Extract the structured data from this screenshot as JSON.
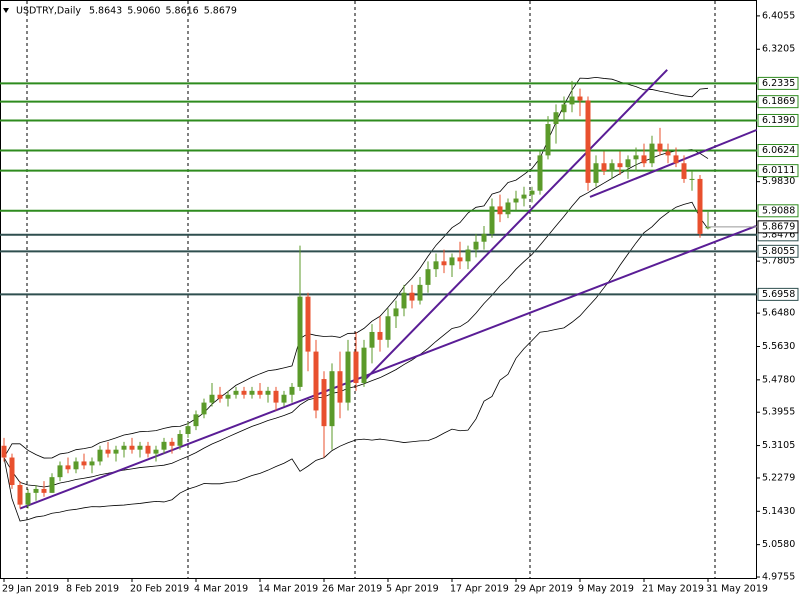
{
  "chart_data": {
    "type": "candlestick",
    "title": "USDTRY,Daily",
    "header_values": [
      {
        "value": 5.8643,
        "label": "5.8643"
      },
      {
        "value": 5.906,
        "label": "5.9060"
      },
      {
        "value": 5.8616,
        "label": "5.8616"
      },
      {
        "value": 5.8679,
        "label": "5.8679"
      }
    ],
    "categories": [
      "29 Jan 2019",
      null,
      null,
      null,
      null,
      null,
      null,
      null,
      "8 Feb 2019",
      null,
      null,
      null,
      null,
      null,
      null,
      null,
      "20 Feb 2019",
      null,
      null,
      null,
      null,
      null,
      null,
      null,
      "4 Mar 2019",
      null,
      null,
      null,
      null,
      null,
      null,
      null,
      "14 Mar 2019",
      null,
      null,
      null,
      null,
      null,
      null,
      null,
      "26 Mar 2019",
      null,
      null,
      null,
      null,
      null,
      null,
      null,
      "5 Apr 2019",
      null,
      null,
      null,
      null,
      null,
      null,
      null,
      "17 Apr 2019",
      null,
      null,
      null,
      null,
      null,
      null,
      null,
      "29 Apr 2019",
      null,
      null,
      null,
      null,
      null,
      null,
      null,
      "9 May 2019",
      null,
      null,
      null,
      null,
      null,
      null,
      null,
      "21 May 2019",
      null,
      null,
      null,
      null,
      null,
      null,
      null,
      "31 May 2019"
    ],
    "open": [
      5.31,
      5.28,
      5.21,
      5.16,
      5.19,
      5.2,
      5.19,
      5.23,
      5.26,
      5.25,
      5.27,
      5.26,
      5.27,
      5.3,
      5.29,
      5.3,
      5.31,
      5.3,
      5.31,
      5.29,
      5.3,
      5.32,
      5.31,
      5.34,
      5.36,
      5.39,
      5.42,
      5.44,
      5.43,
      5.44,
      5.45,
      5.44,
      5.45,
      5.44,
      5.45,
      5.42,
      5.44,
      5.46,
      5.69,
      5.55,
      5.48,
      5.36,
      5.5,
      5.42,
      5.55,
      5.47,
      5.56,
      5.6,
      5.58,
      5.64,
      5.66,
      5.7,
      5.68,
      5.72,
      5.76,
      5.78,
      5.77,
      5.79,
      5.78,
      5.81,
      5.83,
      5.85,
      5.92,
      5.9,
      5.93,
      5.94,
      5.95,
      5.96,
      6.05,
      6.13,
      6.16,
      6.18,
      6.2,
      6.19,
      5.98,
      6.03,
      6.01,
      6.03,
      6.02,
      6.04,
      6.05,
      6.03,
      6.08,
      6.06,
      6.05,
      6.03,
      5.99,
      5.99,
      5.8643
    ],
    "high": [
      5.33,
      5.29,
      5.22,
      5.2,
      5.21,
      5.22,
      5.24,
      5.27,
      5.28,
      5.28,
      5.29,
      5.28,
      5.31,
      5.32,
      5.31,
      5.32,
      5.33,
      5.32,
      5.32,
      5.31,
      5.33,
      5.33,
      5.35,
      5.37,
      5.4,
      5.43,
      5.47,
      5.46,
      5.45,
      5.46,
      5.46,
      5.46,
      5.47,
      5.46,
      5.46,
      5.45,
      5.47,
      5.82,
      5.7,
      5.58,
      5.5,
      5.52,
      5.55,
      5.58,
      5.6,
      5.58,
      5.62,
      5.64,
      5.66,
      5.68,
      5.72,
      5.72,
      5.74,
      5.78,
      5.8,
      5.81,
      5.8,
      5.83,
      5.82,
      5.85,
      5.87,
      5.94,
      5.95,
      5.94,
      5.96,
      5.97,
      5.97,
      6.06,
      6.15,
      6.18,
      6.2,
      6.24,
      6.22,
      6.2,
      6.05,
      6.06,
      6.04,
      6.06,
      6.05,
      6.07,
      6.08,
      6.1,
      6.12,
      6.08,
      6.07,
      6.05,
      6.01,
      6.0,
      5.906
    ],
    "low": [
      5.27,
      5.2,
      5.15,
      5.15,
      5.17,
      5.18,
      5.19,
      5.22,
      5.24,
      5.24,
      5.25,
      5.24,
      5.26,
      5.28,
      5.27,
      5.28,
      5.29,
      5.28,
      5.28,
      5.27,
      5.29,
      5.29,
      5.3,
      5.33,
      5.35,
      5.38,
      5.41,
      5.42,
      5.41,
      5.43,
      5.43,
      5.43,
      5.43,
      5.42,
      5.4,
      5.41,
      5.42,
      5.45,
      5.5,
      5.38,
      5.28,
      5.3,
      5.38,
      5.4,
      5.45,
      5.46,
      5.52,
      5.55,
      5.56,
      5.61,
      5.64,
      5.66,
      5.67,
      5.7,
      5.74,
      5.75,
      5.74,
      5.76,
      5.76,
      5.79,
      5.81,
      5.84,
      5.88,
      5.89,
      5.91,
      5.92,
      5.93,
      5.95,
      6.04,
      6.08,
      6.14,
      6.16,
      6.15,
      5.96,
      5.97,
      6.0,
      5.99,
      6.0,
      5.99,
      6.01,
      6.02,
      6.02,
      6.05,
      6.03,
      6.02,
      5.98,
      5.96,
      5.84,
      5.8616
    ],
    "close": [
      5.28,
      5.21,
      5.16,
      5.19,
      5.2,
      5.19,
      5.23,
      5.26,
      5.25,
      5.27,
      5.26,
      5.27,
      5.3,
      5.29,
      5.3,
      5.31,
      5.3,
      5.31,
      5.29,
      5.3,
      5.32,
      5.31,
      5.34,
      5.36,
      5.39,
      5.42,
      5.44,
      5.43,
      5.44,
      5.45,
      5.44,
      5.45,
      5.44,
      5.45,
      5.42,
      5.44,
      5.46,
      5.69,
      5.55,
      5.4,
      5.36,
      5.5,
      5.42,
      5.55,
      5.47,
      5.56,
      5.6,
      5.58,
      5.64,
      5.66,
      5.7,
      5.68,
      5.72,
      5.76,
      5.78,
      5.77,
      5.79,
      5.78,
      5.81,
      5.83,
      5.85,
      5.92,
      5.9,
      5.93,
      5.94,
      5.95,
      5.96,
      6.05,
      6.13,
      6.16,
      6.18,
      6.2,
      6.19,
      5.98,
      6.03,
      6.01,
      6.03,
      6.02,
      6.04,
      6.05,
      6.03,
      6.08,
      6.06,
      6.05,
      6.03,
      5.99,
      5.99,
      5.85,
      5.8679
    ],
    "up_color": "#5b9a2a",
    "down_color": "#e8502e",
    "ylim": [
      4.973,
      6.446
    ],
    "yticks": [
      {
        "value": 6.4055,
        "label": "6.4055"
      },
      {
        "value": 6.3205,
        "label": "6.3205"
      },
      {
        "value": 5.983,
        "label": "5.9830"
      },
      {
        "value": 5.7805,
        "label": "5.7805"
      },
      {
        "value": 5.648,
        "label": "5.6480"
      },
      {
        "value": 5.563,
        "label": "5.5630"
      },
      {
        "value": 5.478,
        "label": "5.4780"
      },
      {
        "value": 5.3955,
        "label": "5.3955"
      },
      {
        "value": 5.3105,
        "label": "5.3105"
      },
      {
        "value": 5.2279,
        "label": "5.2279"
      },
      {
        "value": 5.143,
        "label": "5.1430"
      },
      {
        "value": 5.058,
        "label": "5.0580"
      },
      {
        "value": 4.9755,
        "label": "4.9755"
      }
    ],
    "levels": [
      {
        "value": 6.2335,
        "label": "6.2335",
        "color": "#2e8b1e"
      },
      {
        "value": 6.1869,
        "label": "6.1869",
        "color": "#2e8b1e"
      },
      {
        "value": 6.139,
        "label": "6.1390",
        "color": "#2e8b1e"
      },
      {
        "value": 6.0624,
        "label": "6.0624",
        "color": "#2e8b1e"
      },
      {
        "value": 6.0111,
        "label": "6.0111",
        "color": "#2e8b1e"
      },
      {
        "value": 5.9088,
        "label": "5.9088",
        "color": "#2e8b1e"
      },
      {
        "value": 5.8476,
        "label": "5.8476",
        "color": "#2f4f4f"
      },
      {
        "value": 5.8055,
        "label": "5.8055",
        "color": "#2f4f4f"
      },
      {
        "value": 5.6958,
        "label": "5.6958",
        "color": "#2f4f4f"
      }
    ],
    "last_price": {
      "value": 5.8679,
      "label": "5.8679"
    },
    "trendline_color": "#5a1d96",
    "trendlines": [
      {
        "x": [
          2,
          94
        ],
        "y": [
          5.15,
          5.87
        ]
      },
      {
        "x": [
          45.1,
          82.9
        ],
        "y": [
          5.478,
          6.268
        ]
      },
      {
        "x": [
          73.25,
          94.1
        ],
        "y": [
          5.944,
          6.115
        ]
      }
    ]
  }
}
